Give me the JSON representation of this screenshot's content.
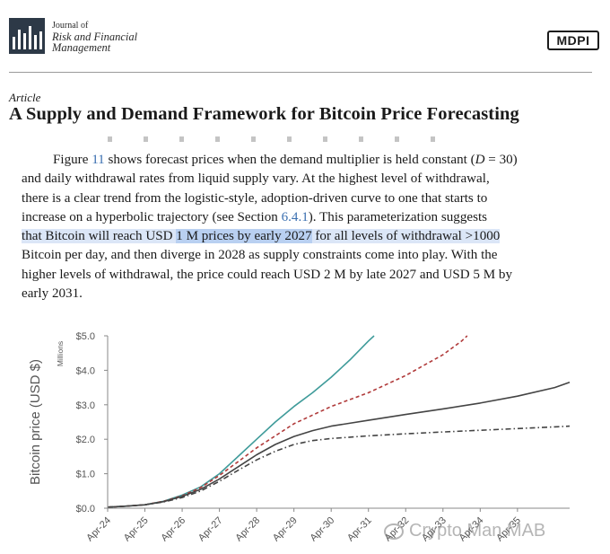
{
  "header": {
    "journal_line1": "Journal of",
    "journal_line2": "Risk and Financial",
    "journal_line3": "Management",
    "publisher": "MDPI"
  },
  "article": {
    "type": "Article",
    "title": "A Supply and Demand Framework for Bitcoin Price Forecasting"
  },
  "body": {
    "l1_a": "Figure ",
    "l1_ref": "11",
    "l1_b": " shows forecast prices when the demand multiplier is held constant (",
    "l1_var": "D",
    "l1_c": " = 30)",
    "l2": "and daily withdrawal rates from liquid supply vary. At the highest level of withdrawal,",
    "l3": "there is a clear trend from the logistic-style, adoption-driven curve to one that starts to",
    "l4_a": "increase on a hyperbolic trajectory (see Section ",
    "l4_ref": "6.4.1",
    "l4_b": ").  This parameterization suggests",
    "l5_a": "that Bitcoin will reach USD ",
    "l5_b": "1 M prices by early 2027",
    "l5_c": " for all levels of withdrawal >1000",
    "l6": "Bitcoin per day, and then diverge in 2028 as supply constraints come into play. With the",
    "l7": "higher levels of withdrawal, the price could reach USD 2 M by late 2027 and USD 5 M by",
    "l8": "early 2031."
  },
  "watermark": "Crypto Man MAB",
  "chart_data": {
    "type": "line",
    "ylabel": "Bitcoin price (USD $)",
    "yunit": "Millions",
    "ylim": [
      0,
      5
    ],
    "yticks": [
      "$0.0",
      "$1.0",
      "$2.0",
      "$3.0",
      "$4.0",
      "$5.0"
    ],
    "categories": [
      "Apr-24",
      "Apr-25",
      "Apr-26",
      "Apr-27",
      "Apr-28",
      "Apr-29",
      "Apr-30",
      "Apr-31",
      "Apr-32",
      "Apr-33",
      "Apr-34",
      "Apr-35"
    ],
    "xlim": [
      0,
      12.4
    ],
    "series": [
      {
        "name": "teal",
        "color": "#3f9b9a",
        "dash": "",
        "x": [
          0,
          0.5,
          1,
          1.5,
          2,
          2.5,
          3,
          3.5,
          4,
          4.5,
          5,
          5.5,
          6,
          6.5,
          7,
          7.15
        ],
        "values": [
          0.03,
          0.06,
          0.1,
          0.2,
          0.38,
          0.62,
          1.0,
          1.5,
          2.0,
          2.5,
          2.95,
          3.35,
          3.8,
          4.3,
          4.85,
          5.0
        ]
      },
      {
        "name": "red-dashed",
        "color": "#b03a3a",
        "dash": "4,3",
        "x": [
          0,
          0.5,
          1,
          1.5,
          2,
          2.5,
          3,
          3.5,
          4,
          4.5,
          5,
          5.5,
          6,
          6.5,
          7,
          7.5,
          8,
          8.5,
          9,
          9.5,
          9.65
        ],
        "values": [
          0.03,
          0.06,
          0.1,
          0.2,
          0.36,
          0.6,
          0.95,
          1.35,
          1.75,
          2.1,
          2.45,
          2.7,
          2.95,
          3.15,
          3.35,
          3.6,
          3.85,
          4.15,
          4.45,
          4.85,
          5.0
        ]
      },
      {
        "name": "black-solid",
        "color": "#444444",
        "dash": "",
        "x": [
          0,
          0.5,
          1,
          1.5,
          2,
          2.5,
          3,
          3.5,
          4,
          4.5,
          5,
          5.5,
          6,
          7,
          8,
          9,
          10,
          11,
          12,
          12.4
        ],
        "values": [
          0.03,
          0.06,
          0.1,
          0.19,
          0.34,
          0.55,
          0.85,
          1.2,
          1.55,
          1.85,
          2.08,
          2.25,
          2.38,
          2.55,
          2.72,
          2.88,
          3.05,
          3.25,
          3.5,
          3.65
        ]
      },
      {
        "name": "black-dashdot",
        "color": "#444444",
        "dash": "6,3,1.5,3",
        "x": [
          0,
          0.5,
          1,
          1.5,
          2,
          2.5,
          3,
          3.5,
          4,
          4.5,
          5,
          5.5,
          6,
          7,
          8,
          9,
          10,
          11,
          12,
          12.4
        ],
        "values": [
          0.03,
          0.06,
          0.1,
          0.18,
          0.31,
          0.5,
          0.78,
          1.1,
          1.4,
          1.65,
          1.85,
          1.96,
          2.02,
          2.1,
          2.16,
          2.21,
          2.26,
          2.31,
          2.36,
          2.38
        ]
      }
    ]
  }
}
